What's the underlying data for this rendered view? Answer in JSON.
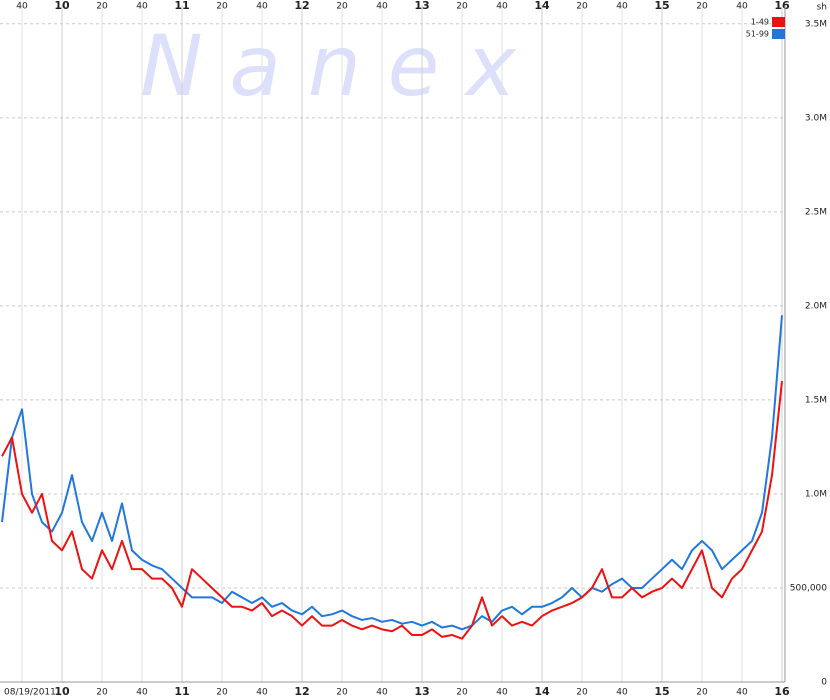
{
  "chart_data": {
    "type": "line",
    "watermark": "N a n e x",
    "date": "08/19/2011",
    "y_unit": "sh",
    "grid": true,
    "legend": "top-right",
    "xlim": [
      569,
      961.5
    ],
    "ylim": [
      0,
      3600000
    ],
    "xticks": [
      {
        "value": 580,
        "label": "40"
      },
      {
        "value": 600,
        "label": "10"
      },
      {
        "value": 620,
        "label": "20"
      },
      {
        "value": 640,
        "label": "40"
      },
      {
        "value": 660,
        "label": "11"
      },
      {
        "value": 680,
        "label": "20"
      },
      {
        "value": 700,
        "label": "40"
      },
      {
        "value": 720,
        "label": "12"
      },
      {
        "value": 740,
        "label": "20"
      },
      {
        "value": 760,
        "label": "40"
      },
      {
        "value": 780,
        "label": "13"
      },
      {
        "value": 800,
        "label": "20"
      },
      {
        "value": 820,
        "label": "40"
      },
      {
        "value": 840,
        "label": "14"
      },
      {
        "value": 860,
        "label": "20"
      },
      {
        "value": 880,
        "label": "40"
      },
      {
        "value": 900,
        "label": "15"
      },
      {
        "value": 920,
        "label": "20"
      },
      {
        "value": 940,
        "label": "40"
      },
      {
        "value": 960,
        "label": "16"
      }
    ],
    "yticks": [
      0,
      {
        "value": 500000,
        "label": "500,000"
      },
      {
        "value": 1000000,
        "label": "1.0M"
      },
      {
        "value": 1500000,
        "label": "1.5M"
      },
      {
        "value": 2000000,
        "label": "2.0M"
      },
      {
        "value": 2500000,
        "label": "2.5M"
      },
      {
        "value": 3000000,
        "label": "3.0M"
      },
      {
        "value": 3500000,
        "label": "3.5M"
      }
    ],
    "x": [
      570,
      575,
      580,
      585,
      590,
      595,
      600,
      605,
      610,
      615,
      620,
      625,
      630,
      635,
      640,
      645,
      650,
      655,
      660,
      665,
      670,
      675,
      680,
      685,
      690,
      695,
      700,
      705,
      710,
      715,
      720,
      725,
      730,
      735,
      740,
      745,
      750,
      755,
      760,
      765,
      770,
      775,
      780,
      785,
      790,
      795,
      800,
      805,
      810,
      815,
      820,
      825,
      830,
      835,
      840,
      845,
      850,
      855,
      860,
      865,
      870,
      875,
      880,
      885,
      890,
      895,
      900,
      905,
      910,
      915,
      920,
      925,
      930,
      935,
      940,
      945,
      950,
      955,
      960
    ],
    "series": [
      {
        "name": "1-49",
        "color": "#ee1111",
        "values": [
          1200000,
          1300000,
          1000000,
          900000,
          1000000,
          750000,
          700000,
          800000,
          600000,
          550000,
          700000,
          600000,
          750000,
          600000,
          600000,
          550000,
          550000,
          500000,
          400000,
          600000,
          550000,
          500000,
          450000,
          400000,
          400000,
          380000,
          420000,
          350000,
          380000,
          350000,
          300000,
          350000,
          300000,
          300000,
          330000,
          300000,
          280000,
          300000,
          280000,
          270000,
          300000,
          250000,
          250000,
          280000,
          240000,
          250000,
          230000,
          300000,
          450000,
          300000,
          350000,
          300000,
          320000,
          300000,
          350000,
          380000,
          400000,
          420000,
          450000,
          500000,
          600000,
          450000,
          450000,
          500000,
          450000,
          480000,
          500000,
          550000,
          500000,
          600000,
          700000,
          500000,
          450000,
          550000,
          600000,
          700000,
          800000,
          1100000,
          1600000
        ]
      },
      {
        "name": "51-99",
        "color": "#2277dd",
        "values": [
          850000,
          1300000,
          1450000,
          1000000,
          850000,
          800000,
          900000,
          1100000,
          850000,
          750000,
          900000,
          750000,
          950000,
          700000,
          650000,
          620000,
          600000,
          550000,
          500000,
          450000,
          450000,
          450000,
          420000,
          480000,
          450000,
          420000,
          450000,
          400000,
          420000,
          380000,
          360000,
          400000,
          350000,
          360000,
          380000,
          350000,
          330000,
          340000,
          320000,
          330000,
          310000,
          320000,
          300000,
          320000,
          290000,
          300000,
          280000,
          300000,
          350000,
          320000,
          380000,
          400000,
          360000,
          400000,
          400000,
          420000,
          450000,
          500000,
          450000,
          500000,
          480000,
          520000,
          550000,
          500000,
          500000,
          550000,
          600000,
          650000,
          600000,
          700000,
          750000,
          700000,
          600000,
          650000,
          700000,
          750000,
          900000,
          1300000,
          1950000
        ]
      }
    ]
  }
}
